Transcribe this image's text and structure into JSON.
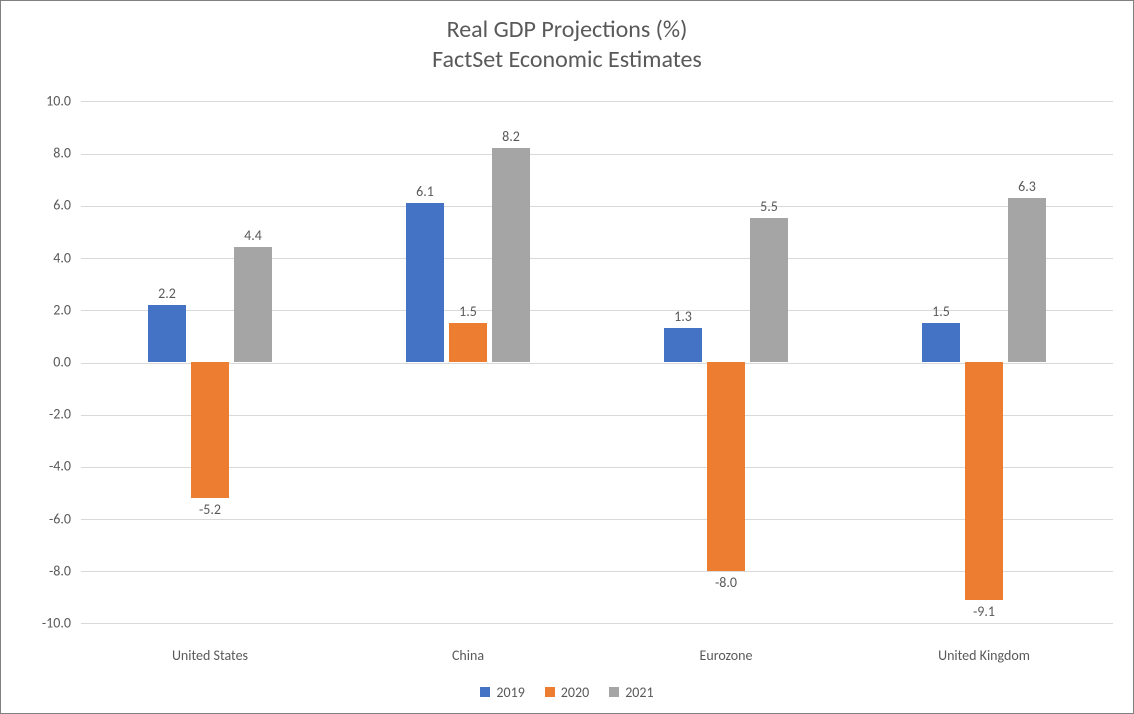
{
  "chart": {
    "type": "bar",
    "title_line1": "Real GDP Projections (%)",
    "title_line2": "FactSet Economic Estimates",
    "title_color": "#595959",
    "title_fontsize": 24,
    "background_color": "#ffffff",
    "border_color": "#808080",
    "grid_color": "#d9d9d9",
    "axis_text_color": "#595959",
    "label_fontsize": 14,
    "ylim": [
      -10,
      10
    ],
    "ytick_step": 2,
    "yticks": [
      "10.0",
      "8.0",
      "6.0",
      "4.0",
      "2.0",
      "0.0",
      "-2.0",
      "-4.0",
      "-6.0",
      "-8.0",
      "-10.0"
    ],
    "ytick_values": [
      10,
      8,
      6,
      4,
      2,
      0,
      -2,
      -4,
      -6,
      -8,
      -10
    ],
    "categories": [
      "United States",
      "China",
      "Eurozone",
      "United Kingdom"
    ],
    "series": [
      {
        "name": "2019",
        "color": "#4472c4",
        "values": [
          2.2,
          6.1,
          1.3,
          1.5
        ]
      },
      {
        "name": "2020",
        "color": "#ed7d31",
        "values": [
          -5.2,
          1.5,
          -8.0,
          -9.1
        ]
      },
      {
        "name": "2021",
        "color": "#a5a5a5",
        "values": [
          4.4,
          8.2,
          5.5,
          6.3
        ]
      }
    ],
    "bar_group_width_pct": 48,
    "bar_gap_pct": 2,
    "data_label_decimals": 1
  }
}
